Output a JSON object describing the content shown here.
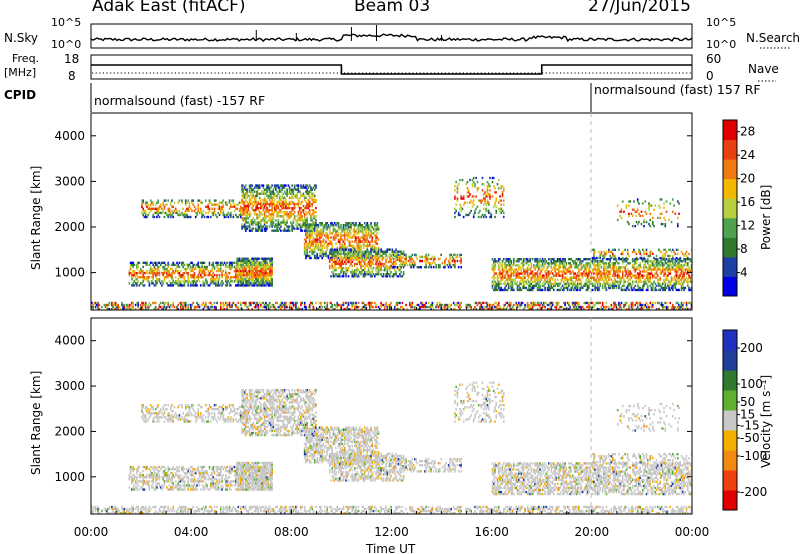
{
  "header": {
    "title": "Adak East (fitACF)",
    "beam": "Beam 03",
    "date": "27/Jun/2015"
  },
  "labels": {
    "nsky": "N.Sky",
    "nsearch": "N.Search",
    "freq_line1": "Freq.",
    "freq_line2": "[MHz]",
    "nave": "Nave",
    "cpid": "CPID",
    "nsky_ticks": [
      "10^5",
      "10^0"
    ],
    "nsearch_ticks": [
      "10^5",
      "10^0"
    ],
    "freq_ticks": [
      "18",
      "8"
    ],
    "nave_ticks": [
      "60",
      "0"
    ],
    "cpid_left": "normalsound (fast) -157 RF",
    "cpid_right": "normalsound (fast) 157 RF"
  },
  "colors": {
    "power": [
      "#0000e6",
      "#1f3fa8",
      "#2f7a2f",
      "#4fa04f",
      "#b8d040",
      "#f2b800",
      "#f07a10",
      "#e84010",
      "#e00000"
    ],
    "velocity": [
      "#e00000",
      "#f04010",
      "#f08a10",
      "#f2b000",
      "#c8c8c8",
      "#60b030",
      "#2f7a2f",
      "#1f3f9a",
      "#2030c0"
    ]
  },
  "chart_data": [
    {
      "type": "heatmap",
      "name": "power",
      "ylabel": "Slant Range [km]",
      "xlabel": "",
      "ylim": [
        180,
        4500
      ],
      "yticks": [
        1000,
        2000,
        3000,
        4000
      ],
      "xlim_hours": [
        0,
        24
      ],
      "xticks": [],
      "colorbar": {
        "label": "Power [dB]",
        "ticks": [
          4,
          8,
          12,
          16,
          20,
          24,
          28
        ],
        "range": [
          0,
          30
        ]
      },
      "cpid_change_hour": 20
    },
    {
      "type": "heatmap",
      "name": "velocity",
      "ylabel": "Slant Range [km]",
      "xlabel": "Time UT",
      "ylim": [
        180,
        4500
      ],
      "yticks": [
        1000,
        2000,
        3000,
        4000
      ],
      "xlim_hours": [
        0,
        24
      ],
      "xticks": [
        "00:00",
        "04:00",
        "08:00",
        "12:00",
        "16:00",
        "20:00",
        "00:00"
      ],
      "colorbar": {
        "label": "Velocity [m s⁻¹]",
        "ticks": [
          -200,
          -100,
          -50,
          -15,
          15,
          50,
          100,
          200
        ],
        "range": [
          -250,
          250
        ]
      },
      "cpid_change_hour": 20
    }
  ]
}
